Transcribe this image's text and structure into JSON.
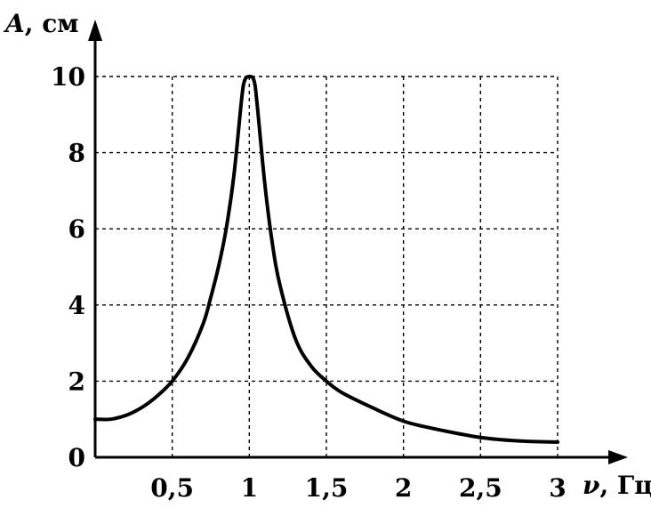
{
  "chart_data": {
    "type": "line",
    "title": "",
    "xlabel": {
      "symbol": "ν",
      "unit": ", Гц"
    },
    "ylabel": {
      "symbol": "A",
      "unit": ", см"
    },
    "xlim": [
      0,
      3
    ],
    "ylim": [
      0,
      10
    ],
    "grid": true,
    "x_ticks": [
      {
        "value": 0.5,
        "label": "0,5"
      },
      {
        "value": 1,
        "label": "1"
      },
      {
        "value": 1.5,
        "label": "1,5"
      },
      {
        "value": 2,
        "label": "2"
      },
      {
        "value": 2.5,
        "label": "2,5"
      },
      {
        "value": 3,
        "label": "3"
      }
    ],
    "y_ticks": [
      {
        "value": 0,
        "label": "0"
      },
      {
        "value": 2,
        "label": "2"
      },
      {
        "value": 4,
        "label": "4"
      },
      {
        "value": 6,
        "label": "6"
      },
      {
        "value": 8,
        "label": "8"
      },
      {
        "value": 10,
        "label": "10"
      }
    ],
    "series": [
      {
        "points": [
          {
            "x": 0.0,
            "y": 1.0
          },
          {
            "x": 0.1,
            "y": 1.0
          },
          {
            "x": 0.2,
            "y": 1.1
          },
          {
            "x": 0.3,
            "y": 1.3
          },
          {
            "x": 0.4,
            "y": 1.6
          },
          {
            "x": 0.5,
            "y": 2.0
          },
          {
            "x": 0.6,
            "y": 2.6
          },
          {
            "x": 0.7,
            "y": 3.5
          },
          {
            "x": 0.75,
            "y": 4.2
          },
          {
            "x": 0.8,
            "y": 5.0
          },
          {
            "x": 0.85,
            "y": 6.0
          },
          {
            "x": 0.9,
            "y": 7.4
          },
          {
            "x": 0.95,
            "y": 9.4
          },
          {
            "x": 0.97,
            "y": 9.9
          },
          {
            "x": 1.0,
            "y": 10.0
          },
          {
            "x": 1.03,
            "y": 9.9
          },
          {
            "x": 1.05,
            "y": 9.3
          },
          {
            "x": 1.1,
            "y": 7.2
          },
          {
            "x": 1.15,
            "y": 5.6
          },
          {
            "x": 1.2,
            "y": 4.5
          },
          {
            "x": 1.3,
            "y": 3.1
          },
          {
            "x": 1.4,
            "y": 2.4
          },
          {
            "x": 1.5,
            "y": 2.0
          },
          {
            "x": 1.6,
            "y": 1.7
          },
          {
            "x": 1.8,
            "y": 1.3
          },
          {
            "x": 2.0,
            "y": 0.95
          },
          {
            "x": 2.2,
            "y": 0.75
          },
          {
            "x": 2.5,
            "y": 0.52
          },
          {
            "x": 2.75,
            "y": 0.43
          },
          {
            "x": 3.0,
            "y": 0.4
          }
        ]
      }
    ]
  }
}
